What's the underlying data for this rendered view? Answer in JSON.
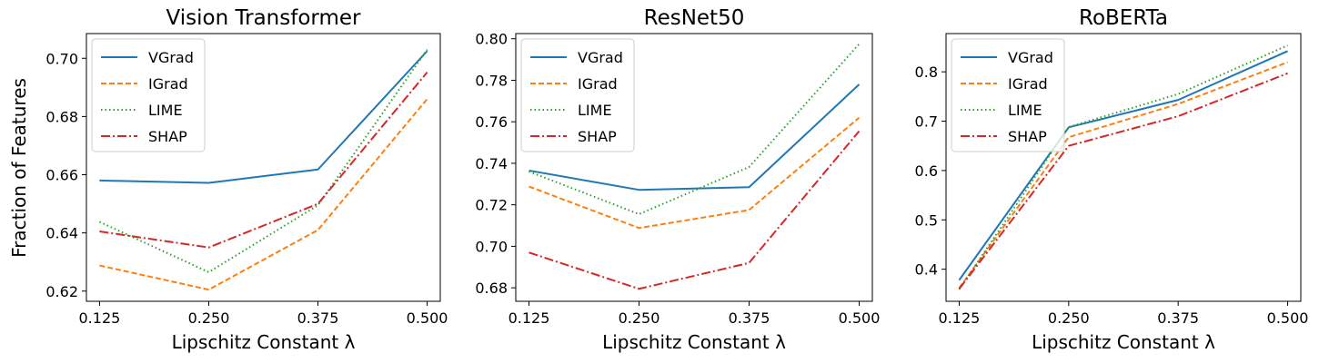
{
  "figure": {
    "ylabel": "Fraction of Features"
  },
  "chart_data": [
    {
      "type": "line",
      "title": "Vision Transformer",
      "xlabel": "Lipschitz Constant λ",
      "ylabel": "Fraction of Features",
      "x": [
        0.125,
        0.25,
        0.375,
        0.5
      ],
      "xticks": [
        "0.125",
        "0.250",
        "0.375",
        "0.500"
      ],
      "yticks": [
        "0.62",
        "0.64",
        "0.66",
        "0.68",
        "0.70"
      ],
      "xlim": [
        0.11,
        0.515
      ],
      "ylim": [
        0.6165,
        0.7085
      ],
      "legend_position": "top-left",
      "series": [
        {
          "name": "VGrad",
          "values": [
            0.658,
            0.6572,
            0.6618,
            0.7025
          ]
        },
        {
          "name": "IGrad",
          "values": [
            0.6288,
            0.6205,
            0.641,
            0.686
          ]
        },
        {
          "name": "LIME",
          "values": [
            0.6438,
            0.6265,
            0.6495,
            0.703
          ]
        },
        {
          "name": "SHAP",
          "values": [
            0.6405,
            0.635,
            0.65,
            0.6952
          ]
        }
      ]
    },
    {
      "type": "line",
      "title": "ResNet50",
      "xlabel": "Lipschitz Constant λ",
      "ylabel": "",
      "x": [
        0.125,
        0.25,
        0.375,
        0.5
      ],
      "xticks": [
        "0.125",
        "0.250",
        "0.375",
        "0.500"
      ],
      "yticks": [
        "0.68",
        "0.70",
        "0.72",
        "0.74",
        "0.76",
        "0.78",
        "0.80"
      ],
      "xlim": [
        0.11,
        0.515
      ],
      "ylim": [
        0.6735,
        0.8025
      ],
      "legend_position": "top-left",
      "series": [
        {
          "name": "VGrad",
          "values": [
            0.7365,
            0.7272,
            0.7285,
            0.778
          ]
        },
        {
          "name": "IGrad",
          "values": [
            0.7288,
            0.7088,
            0.7175,
            0.762
          ]
        },
        {
          "name": "LIME",
          "values": [
            0.736,
            0.7155,
            0.7382,
            0.7975
          ]
        },
        {
          "name": "SHAP",
          "values": [
            0.697,
            0.6795,
            0.692,
            0.7555
          ]
        }
      ]
    },
    {
      "type": "line",
      "title": "RoBERTa",
      "xlabel": "Lipschitz Constant λ",
      "ylabel": "",
      "x": [
        0.125,
        0.25,
        0.375,
        0.5
      ],
      "xticks": [
        "0.125",
        "0.250",
        "0.375",
        "0.500"
      ],
      "yticks": [
        "0.4",
        "0.5",
        "0.6",
        "0.7",
        "0.8"
      ],
      "xlim": [
        0.11,
        0.515
      ],
      "ylim": [
        0.335,
        0.8775
      ],
      "legend_position": "top-left",
      "series": [
        {
          "name": "VGrad",
          "values": [
            0.378,
            0.6875,
            0.743,
            0.842
          ]
        },
        {
          "name": "IGrad",
          "values": [
            0.362,
            0.6675,
            0.735,
            0.8195
          ]
        },
        {
          "name": "LIME",
          "values": [
            0.359,
            0.688,
            0.755,
            0.8535
          ]
        },
        {
          "name": "SHAP",
          "values": [
            0.36,
            0.65,
            0.71,
            0.797
          ]
        }
      ]
    }
  ],
  "style": {
    "series_colors": [
      "#1f77b4",
      "#ff7f0e",
      "#2ca02c",
      "#d62728"
    ],
    "series_dash": [
      "",
      "6,3",
      "1.5,3",
      "10,3,2,3"
    ]
  }
}
